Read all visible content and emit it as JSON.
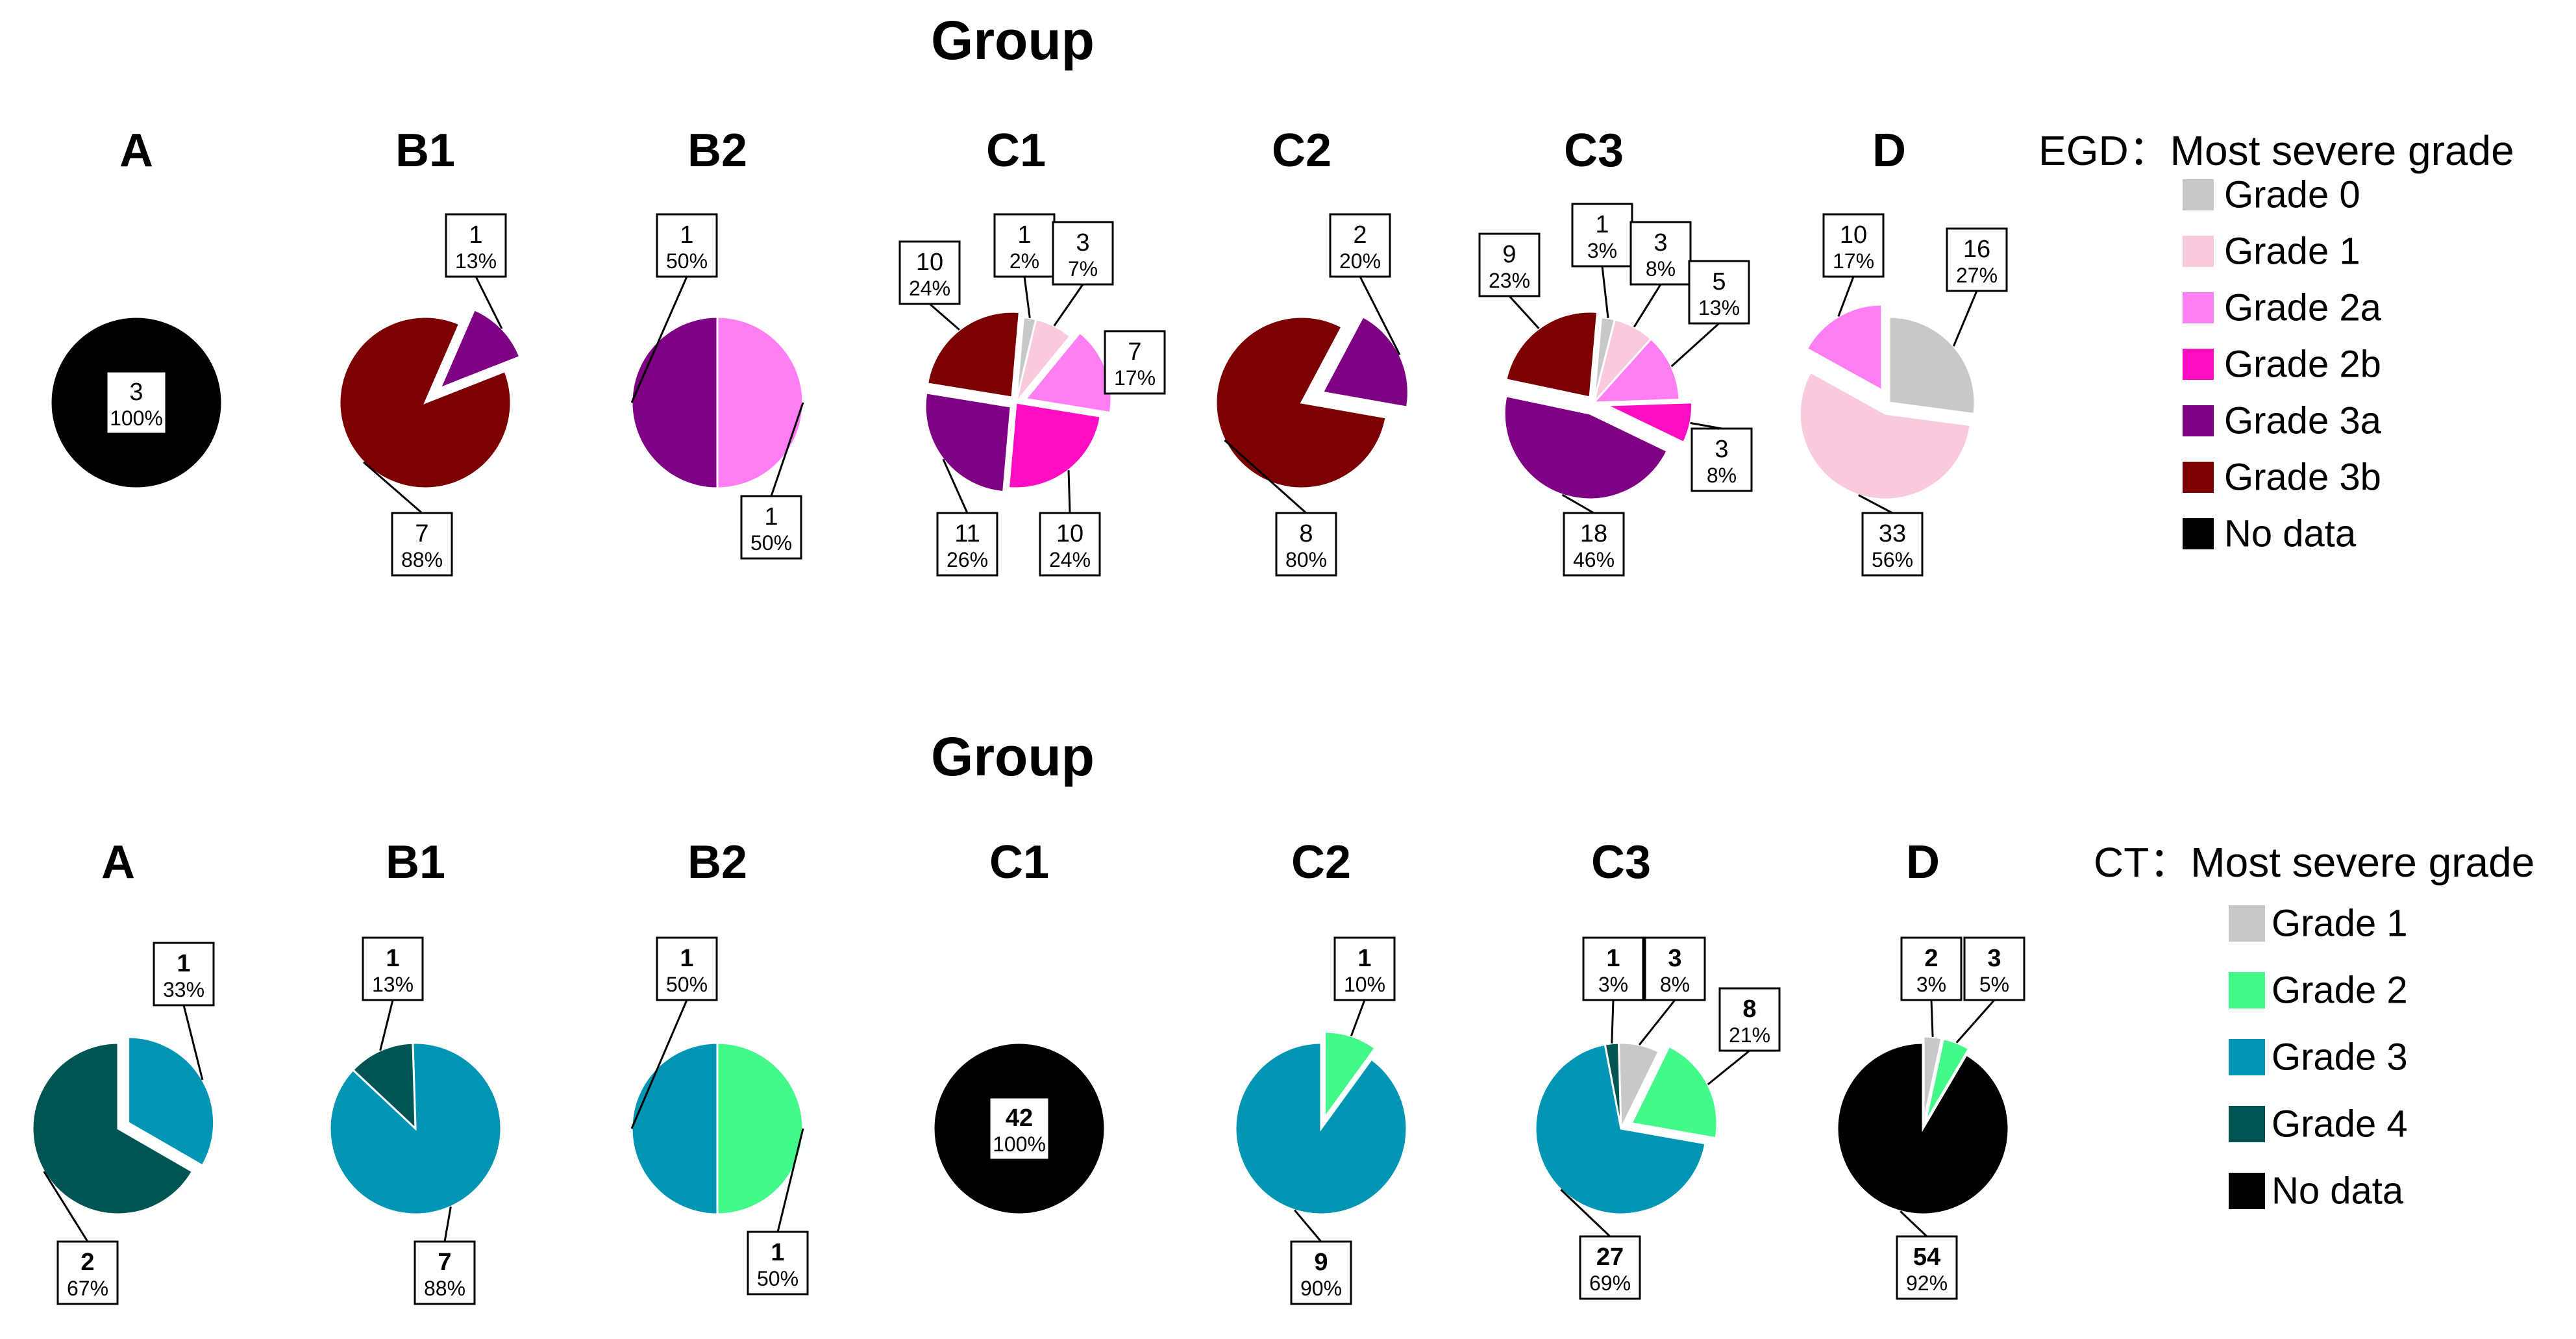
{
  "chart_data": [
    {
      "type": "pie",
      "title": "Group",
      "legend_title": "EGD：Most severe grade",
      "legend": [
        {
          "name": "Grade 0",
          "color": "#c8c8c8"
        },
        {
          "name": "Grade 1",
          "color": "#f9c9dd"
        },
        {
          "name": "Grade 2a",
          "color": "#ff7ef4"
        },
        {
          "name": "Grade 2b",
          "color": "#ff0dc3"
        },
        {
          "name": "Grade 3a",
          "color": "#7e0183"
        },
        {
          "name": "Grade 3b",
          "color": "#7c0000"
        },
        {
          "name": "No data",
          "color": "#000000"
        }
      ],
      "pies": [
        {
          "label": "A",
          "slices": [
            {
              "category": "No data",
              "count": "3",
              "pct": "100%"
            }
          ]
        },
        {
          "label": "B1",
          "slices": [
            {
              "category": "Grade 3a",
              "count": "1",
              "pct": "13%"
            },
            {
              "category": "Grade 3b",
              "count": "7",
              "pct": "88%"
            }
          ]
        },
        {
          "label": "B2",
          "slices": [
            {
              "category": "Grade 2a",
              "count": "1",
              "pct": "50%"
            },
            {
              "category": "Grade 3a",
              "count": "1",
              "pct": "50%"
            }
          ]
        },
        {
          "label": "C1",
          "slices": [
            {
              "category": "Grade 0",
              "count": "1",
              "pct": "2%"
            },
            {
              "category": "Grade 1",
              "count": "3",
              "pct": "7%"
            },
            {
              "category": "Grade 2a",
              "count": "7",
              "pct": "17%"
            },
            {
              "category": "Grade 2b",
              "count": "10",
              "pct": "24%"
            },
            {
              "category": "Grade 3a",
              "count": "11",
              "pct": "26%"
            },
            {
              "category": "Grade 3b",
              "count": "10",
              "pct": "24%"
            }
          ]
        },
        {
          "label": "C2",
          "slices": [
            {
              "category": "Grade 3a",
              "count": "2",
              "pct": "20%"
            },
            {
              "category": "Grade 3b",
              "count": "8",
              "pct": "80%"
            }
          ]
        },
        {
          "label": "C3",
          "slices": [
            {
              "category": "Grade 0",
              "count": "1",
              "pct": "3%"
            },
            {
              "category": "Grade 1",
              "count": "3",
              "pct": "8%"
            },
            {
              "category": "Grade 2a",
              "count": "5",
              "pct": "13%"
            },
            {
              "category": "Grade 2b",
              "count": "3",
              "pct": "8%"
            },
            {
              "category": "Grade 3a",
              "count": "18",
              "pct": "46%"
            },
            {
              "category": "Grade 3b",
              "count": "9",
              "pct": "23%"
            }
          ]
        },
        {
          "label": "D",
          "slices": [
            {
              "category": "Grade 0",
              "count": "16",
              "pct": "27%"
            },
            {
              "category": "Grade 1",
              "count": "33",
              "pct": "56%"
            },
            {
              "category": "Grade 2a",
              "count": "10",
              "pct": "17%"
            }
          ]
        }
      ]
    },
    {
      "type": "pie",
      "title": "Group",
      "legend_title": "CT：Most severe grade",
      "legend": [
        {
          "name": "Grade 1",
          "color": "#c8c8c8"
        },
        {
          "name": "Grade 2",
          "color": "#43f98a"
        },
        {
          "name": "Grade 3",
          "color": "#0095b3"
        },
        {
          "name": "Grade 4",
          "color": "#005553"
        },
        {
          "name": "No data",
          "color": "#000000"
        }
      ],
      "pies": [
        {
          "label": "A",
          "slices": [
            {
              "category": "Grade 3",
              "count": "1",
              "pct": "33%"
            },
            {
              "category": "Grade 4",
              "count": "2",
              "pct": "67%"
            }
          ]
        },
        {
          "label": "B1",
          "slices": [
            {
              "category": "Grade 3",
              "count": "7",
              "pct": "88%"
            },
            {
              "category": "Grade 4",
              "count": "1",
              "pct": "13%"
            }
          ]
        },
        {
          "label": "B2",
          "slices": [
            {
              "category": "Grade 2",
              "count": "1",
              "pct": "50%"
            },
            {
              "category": "Grade 3",
              "count": "1",
              "pct": "50%"
            }
          ]
        },
        {
          "label": "C1",
          "slices": [
            {
              "category": "No data",
              "count": "42",
              "pct": "100%"
            }
          ]
        },
        {
          "label": "C2",
          "slices": [
            {
              "category": "Grade 2",
              "count": "1",
              "pct": "10%"
            },
            {
              "category": "Grade 3",
              "count": "9",
              "pct": "90%"
            }
          ]
        },
        {
          "label": "C3",
          "slices": [
            {
              "category": "Grade 1",
              "count": "3",
              "pct": "8%"
            },
            {
              "category": "Grade 2",
              "count": "8",
              "pct": "21%"
            },
            {
              "category": "Grade 3",
              "count": "27",
              "pct": "69%"
            },
            {
              "category": "Grade 4",
              "count": "1",
              "pct": "3%"
            }
          ]
        },
        {
          "label": "D",
          "slices": [
            {
              "category": "Grade 1",
              "count": "2",
              "pct": "3%"
            },
            {
              "category": "Grade 2",
              "count": "3",
              "pct": "5%"
            },
            {
              "category": "No data",
              "count": "54",
              "pct": "92%"
            }
          ]
        }
      ]
    }
  ]
}
